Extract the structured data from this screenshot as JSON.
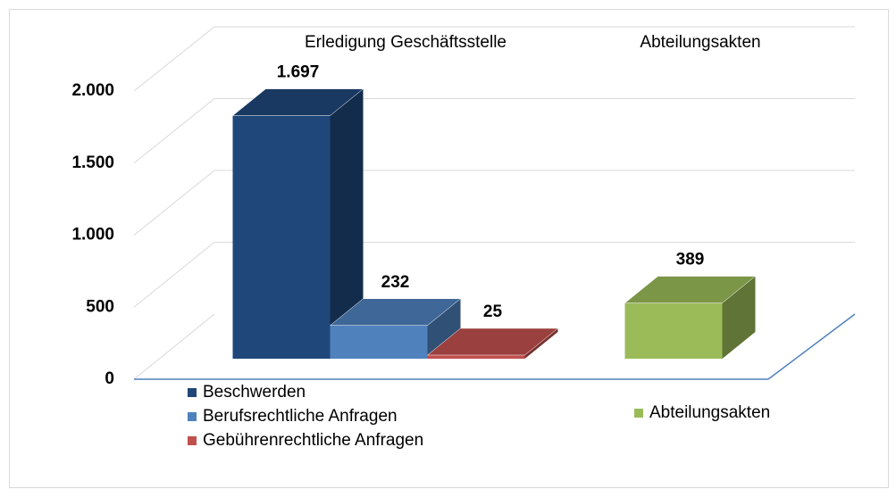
{
  "chart_data": {
    "type": "bar3d",
    "categories": [
      "Erledigung Geschäftsstelle",
      "Abteilungsakten"
    ],
    "series": [
      {
        "name": "Beschwerden",
        "color": "#1f477a",
        "values": [
          1697,
          null
        ],
        "value_labels": [
          "1.697",
          null
        ]
      },
      {
        "name": "Berufsrechtliche Anfragen",
        "color": "#4f81bd",
        "values": [
          232,
          null
        ],
        "value_labels": [
          "232",
          null
        ]
      },
      {
        "name": "Gebührenrechtliche Anfragen",
        "color": "#c0504d",
        "values": [
          25,
          null
        ],
        "value_labels": [
          "25",
          null
        ]
      },
      {
        "name": "Abteilungsakten",
        "color": "#9bbb59",
        "values": [
          null,
          389
        ],
        "value_labels": [
          null,
          "389"
        ]
      }
    ],
    "ylim": [
      0,
      2000
    ],
    "yticks": [
      0,
      500,
      {
        "value": 1000,
        "label": "1.000"
      },
      {
        "value": 1500,
        "label": "1.500"
      },
      {
        "value": 2000,
        "label": "2.000"
      }
    ],
    "grid": true
  }
}
